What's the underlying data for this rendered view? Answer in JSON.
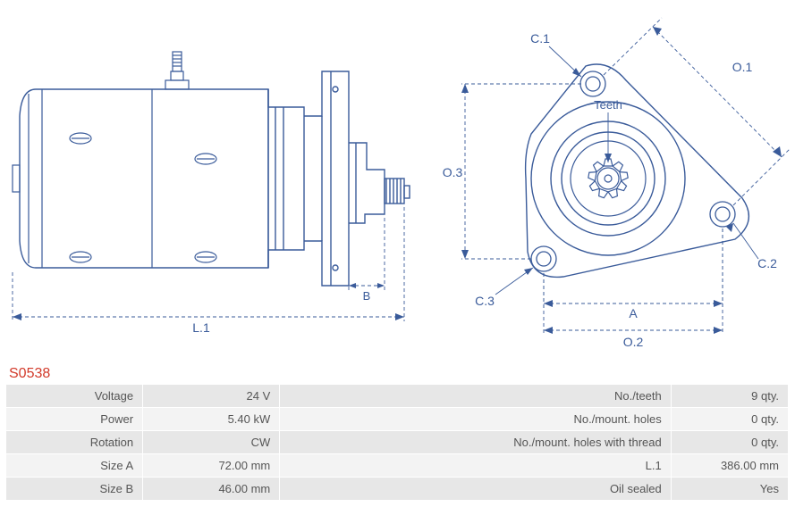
{
  "part_number": "S0538",
  "part_color": "#d23a2a",
  "diagram": {
    "stroke": "#3a5b9a",
    "stroke_width": 1.4,
    "font_size": 13,
    "label_color": "#3a5b9a",
    "side": {
      "L1": "L.1",
      "B": "B"
    },
    "front": {
      "C1": "C.1",
      "C2": "C.2",
      "C3": "C.3",
      "O1": "O.1",
      "O2": "O.2",
      "O3": "O.3",
      "A": "A",
      "Teeth": "Teeth"
    }
  },
  "specs": {
    "row_bg_alt": [
      "#e7e7e7",
      "#f3f3f3"
    ],
    "text_color": "#555555",
    "rows": [
      {
        "l1": "Voltage",
        "v1": "24 V",
        "l2": "No./teeth",
        "v2": "9 qty."
      },
      {
        "l1": "Power",
        "v1": "5.40 kW",
        "l2": "No./mount. holes",
        "v2": "0 qty."
      },
      {
        "l1": "Rotation",
        "v1": "CW",
        "l2": "No./mount. holes with thread",
        "v2": "0 qty."
      },
      {
        "l1": "Size A",
        "v1": "72.00 mm",
        "l2": "L.1",
        "v2": "386.00 mm"
      },
      {
        "l1": "Size B",
        "v1": "46.00 mm",
        "l2": "Oil sealed",
        "v2": "Yes"
      }
    ]
  }
}
